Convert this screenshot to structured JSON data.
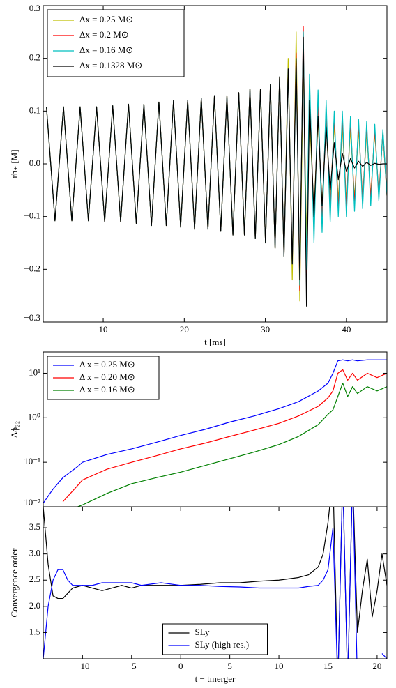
{
  "chart_data": [
    {
      "type": "line",
      "x_label": "t [ms]",
      "y_label": "rh₊ [M]",
      "xlim": [
        2.6,
        45
      ],
      "xticks": [
        10,
        20,
        30,
        40
      ],
      "ylim": [
        -0.3,
        0.3
      ],
      "yticks": [
        {
          "value": -0.3,
          "label": "−0.3"
        },
        {
          "value": -0.2,
          "label": "−0.2"
        },
        {
          "value": -0.1,
          "label": "−0.1"
        },
        {
          "value": 0,
          "label": "0.0"
        },
        0.1,
        0.2,
        0.3
      ],
      "legend": "upper left",
      "x": [
        3.0,
        4.05,
        5.1,
        6.13,
        7.15,
        8.17,
        9.18,
        10.18,
        11.17,
        12.15,
        13.12,
        14.08,
        15.02,
        15.95,
        16.87,
        17.78,
        18.67,
        19.55,
        20.42,
        21.27,
        22.1,
        22.92,
        23.72,
        24.5,
        25.26,
        26.0,
        26.72,
        27.42,
        28.1,
        28.76,
        29.4,
        30.02,
        30.62,
        31.2,
        31.76,
        32.3,
        32.82,
        33.32,
        33.8,
        34.25,
        34.68,
        35.08,
        35.45,
        36,
        36.5,
        37,
        37.5,
        38,
        38.5,
        39,
        39.5,
        40,
        40.5,
        41,
        41.5,
        42,
        42.5,
        43,
        43.5,
        44,
        44.5,
        45
      ],
      "series": [
        {
          "name": "Δx = 0.25 M⊙",
          "color": "#bfbf00",
          "values": [
            0.108,
            -0.108,
            0.108,
            -0.108,
            0.108,
            -0.108,
            0.108,
            -0.11,
            0.11,
            -0.11,
            0.113,
            -0.113,
            0.113,
            -0.117,
            0.117,
            -0.117,
            0.12,
            -0.12,
            0.12,
            -0.124,
            0.124,
            -0.124,
            0.128,
            -0.128,
            0.128,
            -0.135,
            0.135,
            -0.135,
            0.142,
            -0.142,
            0.142,
            -0.15,
            0.15,
            -0.16,
            0.165,
            -0.175,
            0.2,
            -0.22,
            0.25,
            -0.26,
            0.2,
            -0.14,
            0.09,
            -0.09,
            0.085,
            -0.08,
            0.08,
            -0.075,
            0.075,
            -0.07,
            0.07,
            -0.07,
            0.065,
            -0.065,
            0.065,
            -0.065,
            0.06,
            -0.06,
            0.06,
            -0.06,
            0.06,
            -0.06
          ]
        },
        {
          "name": "Δx = 0.2 M⊙",
          "color": "#ff0000",
          "values": [
            0.108,
            -0.108,
            0.108,
            -0.108,
            0.108,
            -0.108,
            0.108,
            -0.11,
            0.11,
            -0.11,
            0.113,
            -0.113,
            0.113,
            -0.117,
            0.117,
            -0.117,
            0.12,
            -0.12,
            0.12,
            -0.124,
            0.124,
            -0.124,
            0.128,
            -0.128,
            0.128,
            -0.135,
            0.135,
            -0.135,
            0.142,
            -0.142,
            0.142,
            -0.15,
            0.15,
            -0.16,
            0.165,
            -0.175,
            0.18,
            -0.19,
            0.21,
            -0.24,
            0.26,
            -0.22,
            0.15,
            -0.12,
            0.11,
            -0.1,
            0.1,
            -0.09,
            0.09,
            -0.085,
            0.085,
            -0.08,
            0.08,
            -0.075,
            0.075,
            -0.07,
            0.07,
            -0.065,
            0.065,
            -0.06,
            0.06,
            -0.06
          ]
        },
        {
          "name": "Δx = 0.16 M⊙",
          "color": "#00bfbf",
          "values": [
            0.108,
            -0.108,
            0.108,
            -0.108,
            0.108,
            -0.108,
            0.108,
            -0.11,
            0.11,
            -0.11,
            0.113,
            -0.113,
            0.113,
            -0.117,
            0.117,
            -0.117,
            0.12,
            -0.12,
            0.12,
            -0.124,
            0.124,
            -0.124,
            0.128,
            -0.128,
            0.128,
            -0.135,
            0.135,
            -0.135,
            0.142,
            -0.142,
            0.142,
            -0.15,
            0.15,
            -0.16,
            0.165,
            -0.175,
            0.18,
            -0.19,
            0.2,
            -0.23,
            0.25,
            -0.2,
            0.17,
            -0.15,
            0.14,
            -0.13,
            0.12,
            -0.11,
            0.1,
            -0.1,
            0.1,
            -0.1,
            0.09,
            -0.09,
            0.085,
            -0.085,
            0.08,
            -0.08,
            0.075,
            -0.07,
            0.065,
            -0.06
          ]
        },
        {
          "name": "Δx = 0.1328 M⊙",
          "color": "#000000",
          "values": [
            0.108,
            -0.108,
            0.108,
            -0.108,
            0.108,
            -0.108,
            0.108,
            -0.11,
            0.11,
            -0.11,
            0.113,
            -0.113,
            0.113,
            -0.117,
            0.117,
            -0.117,
            0.12,
            -0.12,
            0.12,
            -0.124,
            0.124,
            -0.124,
            0.128,
            -0.128,
            0.128,
            -0.135,
            0.135,
            -0.135,
            0.142,
            -0.142,
            0.142,
            -0.15,
            0.15,
            -0.16,
            0.165,
            -0.175,
            0.18,
            -0.19,
            0.2,
            -0.22,
            0.24,
            -0.27,
            0.12,
            -0.1,
            0.09,
            -0.08,
            0.07,
            -0.05,
            0.04,
            -0.03,
            0.02,
            -0.015,
            0.01,
            -0.008,
            0.005,
            -0.005,
            0.003,
            -0.003,
            0.001,
            -0.001,
            0,
            0
          ]
        }
      ]
    },
    {
      "type": "line",
      "y_label": "Δϕ₂₂",
      "yscale": "log",
      "xlim": [
        -14,
        21
      ],
      "ylim": [
        0.01,
        30
      ],
      "yticks": [
        {
          "value": 0.01,
          "label": "10⁻²"
        },
        {
          "value": 0.1,
          "label": "10⁻¹"
        },
        {
          "value": 1,
          "label": "10⁰"
        },
        {
          "value": 10,
          "label": "10¹"
        }
      ],
      "legend": "upper left",
      "x": [
        -14,
        -13,
        -12,
        -10.5,
        -10,
        -7.5,
        -5,
        -2.5,
        0,
        2.5,
        5,
        7.5,
        10,
        12,
        14,
        15,
        15.5,
        16,
        16.5,
        17,
        17.5,
        18,
        19,
        20,
        21
      ],
      "series": [
        {
          "name": "Δ x = 0.25 M⊙",
          "color": "#0000ff",
          "values": [
            0.012,
            0.025,
            0.045,
            0.08,
            0.1,
            0.15,
            0.2,
            0.28,
            0.4,
            0.55,
            0.8,
            1.1,
            1.6,
            2.3,
            4,
            6,
            10,
            19,
            20,
            19,
            20,
            19,
            20,
            20,
            20
          ]
        },
        {
          "name": "Δ x = 0.20 M⊙",
          "color": "#ff0000",
          "values": [
            null,
            null,
            0.013,
            0.03,
            0.04,
            0.07,
            0.1,
            0.14,
            0.2,
            0.27,
            0.38,
            0.53,
            0.75,
            1.1,
            1.8,
            2.8,
            4,
            10,
            12,
            7,
            10,
            7,
            10,
            8,
            10
          ]
        },
        {
          "name": "Δ x = 0.16 M⊙",
          "color": "#008000",
          "values": [
            null,
            null,
            null,
            0.01,
            0.011,
            0.02,
            0.033,
            0.045,
            0.06,
            0.085,
            0.12,
            0.17,
            0.25,
            0.38,
            0.7,
            1.2,
            1.5,
            3,
            6,
            3,
            5,
            3.5,
            5,
            4,
            5
          ]
        }
      ]
    },
    {
      "type": "line",
      "x_label": "t − tmerger",
      "y_label": "Convergence order",
      "xlim": [
        -14,
        21
      ],
      "xticks": [
        {
          "value": -10,
          "label": "−10"
        },
        {
          "value": -5,
          "label": "−5"
        },
        0,
        5,
        10,
        15,
        20
      ],
      "ylim": [
        1.0,
        3.9
      ],
      "yticks": [
        1.5,
        {
          "value": 2,
          "label": "2.0"
        },
        2.5,
        {
          "value": 3,
          "label": "3.0"
        },
        3.5
      ],
      "legend": "lower center",
      "x": [
        -14,
        -13.5,
        -13,
        -12.5,
        -12,
        -11.5,
        -11,
        -10,
        -9,
        -8,
        -7,
        -6,
        -5,
        -4,
        -2,
        0,
        2,
        4,
        6,
        8,
        10,
        12,
        13,
        14,
        14.5,
        15,
        15.5,
        16,
        16.5,
        17,
        17.5,
        18,
        18.5,
        19,
        19.5,
        20,
        20.5,
        21
      ],
      "series": [
        {
          "name": "SLy",
          "color": "#000000",
          "values": [
            3.9,
            2.8,
            2.2,
            2.15,
            2.15,
            2.25,
            2.35,
            2.4,
            2.35,
            2.3,
            2.35,
            2.4,
            2.35,
            2.4,
            2.4,
            2.4,
            2.42,
            2.45,
            2.45,
            2.48,
            2.5,
            2.55,
            2.6,
            2.75,
            3.0,
            3.6,
            4.5,
            0.5,
            4.5,
            0.5,
            4.5,
            1.5,
            2.3,
            2.9,
            1.8,
            2.3,
            3.0,
            2.4
          ]
        },
        {
          "name": "SLy (high res.)",
          "color": "#0000ff",
          "values": [
            1.0,
            2.0,
            2.5,
            2.7,
            2.7,
            2.5,
            2.4,
            2.4,
            2.4,
            2.45,
            2.45,
            2.45,
            2.45,
            2.4,
            2.45,
            2.4,
            2.4,
            2.38,
            2.37,
            2.35,
            2.35,
            2.35,
            2.38,
            2.4,
            2.5,
            2.7,
            3.5,
            0.5,
            4.5,
            0.5,
            4.5,
            0.5,
            null,
            null,
            null,
            null,
            1.1,
            1.0
          ]
        }
      ]
    }
  ]
}
